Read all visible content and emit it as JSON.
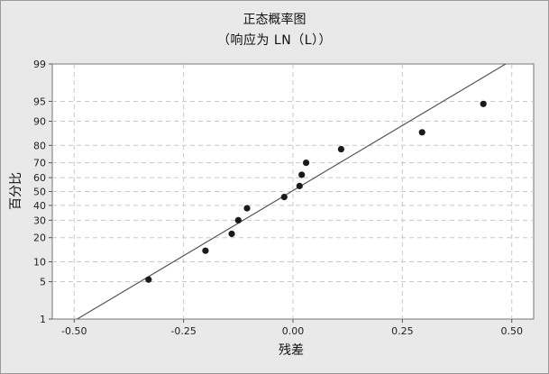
{
  "chart_data": {
    "type": "scatter",
    "title": "正态概率图",
    "subtitle": "（响应为 LN（L））",
    "xlabel": "残差",
    "ylabel": "百分比",
    "xlim": [
      -0.55,
      0.55
    ],
    "x_ticks": [
      -0.5,
      -0.25,
      0.0,
      0.25,
      0.5
    ],
    "x_tick_labels": [
      "-0.50",
      "-0.25",
      "0.00",
      "0.25",
      "0.50"
    ],
    "y_scale": "normal-probability",
    "ylim": [
      1,
      99
    ],
    "y_ticks": [
      1,
      5,
      10,
      20,
      30,
      40,
      50,
      60,
      70,
      80,
      90,
      95,
      99
    ],
    "y_tick_labels": [
      "1",
      "5",
      "10",
      "20",
      "30",
      "40",
      "50",
      "60",
      "70",
      "80",
      "90",
      "95",
      "99"
    ],
    "grid": true,
    "points": [
      {
        "x": -0.33,
        "y": 5.4
      },
      {
        "x": -0.2,
        "y": 14
      },
      {
        "x": -0.14,
        "y": 22
      },
      {
        "x": -0.125,
        "y": 30
      },
      {
        "x": -0.105,
        "y": 38
      },
      {
        "x": -0.02,
        "y": 46
      },
      {
        "x": 0.015,
        "y": 54
      },
      {
        "x": 0.02,
        "y": 62
      },
      {
        "x": 0.03,
        "y": 70
      },
      {
        "x": 0.11,
        "y": 78
      },
      {
        "x": 0.295,
        "y": 86
      },
      {
        "x": 0.435,
        "y": 94.5
      }
    ],
    "fit_line": {
      "x": [
        -0.493,
        0.486
      ],
      "y": [
        1,
        99
      ]
    },
    "colors": {
      "background": "#e9e9e9",
      "plot_bg": "#ffffff",
      "points": "#1a1a1a",
      "line": "#555555",
      "grid": "#c8c8c8"
    }
  }
}
